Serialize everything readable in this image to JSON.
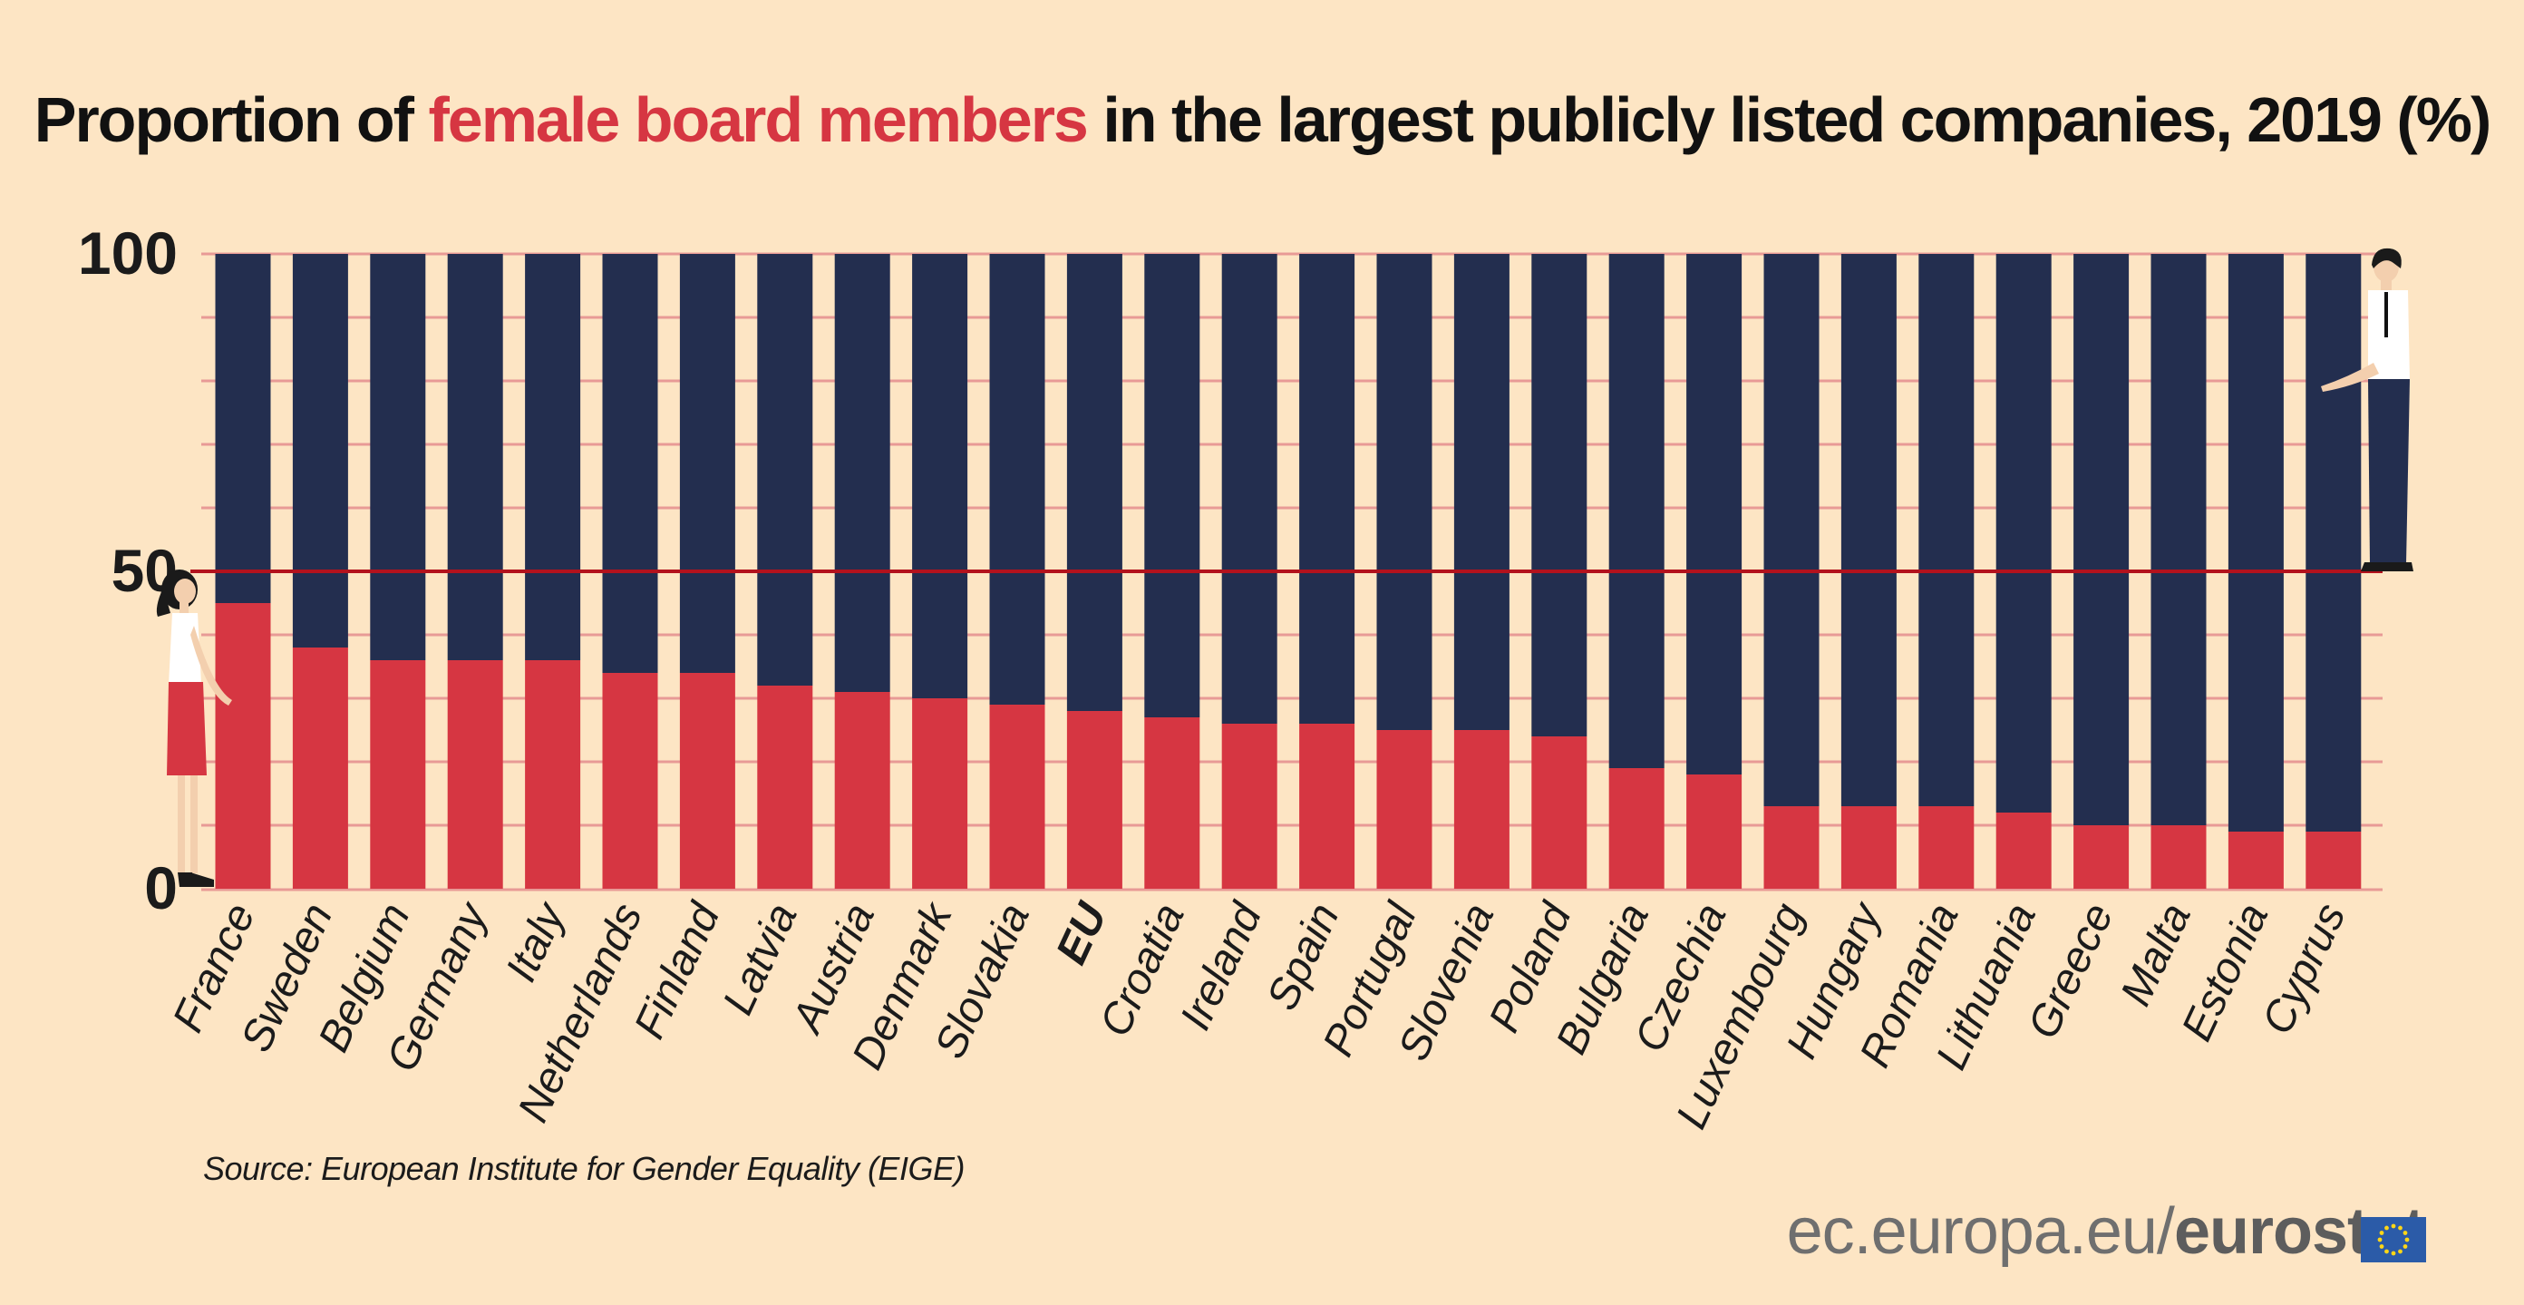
{
  "header": {
    "title_before": "Proportion of ",
    "title_highlight": "female board members",
    "title_after": " in the largest publicly listed companies, 2019 (%)"
  },
  "footer": {
    "source": "Source: European Institute for Gender Equality (EIGE)",
    "brand_domain": "ec.europa.eu/",
    "brand_name": "eurostat"
  },
  "colors": {
    "background": "#fde5c4",
    "female": "#d63642",
    "male": "#232e4f",
    "gridline": "#e89a96",
    "fifty_line": "#b3121d"
  },
  "icons": [
    "woman-figure-icon",
    "man-figure-icon",
    "eu-flag-icon"
  ],
  "chart_data": {
    "type": "bar",
    "stacked": true,
    "title": "Proportion of female board members in the largest publicly listed companies, 2019 (%)",
    "ylim": [
      0,
      100
    ],
    "yticks": [
      0,
      50,
      100
    ],
    "grid": true,
    "highlighted_category": "EU",
    "categories": [
      "France",
      "Sweden",
      "Belgium",
      "Germany",
      "Italy",
      "Netherlands",
      "Finland",
      "Latvia",
      "Austria",
      "Denmark",
      "Slovakia",
      "EU",
      "Croatia",
      "Ireland",
      "Spain",
      "Portugal",
      "Slovenia",
      "Poland",
      "Bulgaria",
      "Czechia",
      "Luxembourg",
      "Hungary",
      "Romania",
      "Lithuania",
      "Greece",
      "Malta",
      "Estonia",
      "Cyprus"
    ],
    "series": [
      {
        "values": [
          45,
          38,
          36,
          36,
          36,
          34,
          34,
          32,
          31,
          30,
          29,
          28,
          27,
          26,
          26,
          25,
          25,
          24,
          19,
          18,
          13,
          13,
          13,
          12,
          10,
          10,
          9,
          9
        ]
      },
      {
        "values": [
          55,
          62,
          64,
          64,
          64,
          66,
          66,
          68,
          69,
          70,
          71,
          72,
          73,
          74,
          74,
          75,
          75,
          76,
          81,
          82,
          87,
          87,
          87,
          88,
          90,
          90,
          91,
          91
        ]
      }
    ]
  }
}
